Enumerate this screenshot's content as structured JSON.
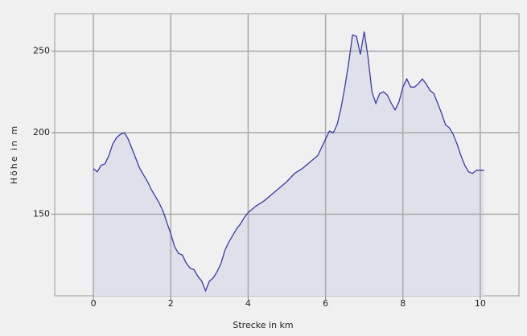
{
  "chart_data": {
    "type": "area",
    "xlabel": "Strecke in km",
    "ylabel": "Höhe in m",
    "x": [
      0,
      0.1,
      0.2,
      0.3,
      0.4,
      0.5,
      0.6,
      0.7,
      0.8,
      0.9,
      1.0,
      1.1,
      1.2,
      1.3,
      1.4,
      1.5,
      1.6,
      1.7,
      1.8,
      1.9,
      2.0,
      2.1,
      2.2,
      2.3,
      2.4,
      2.5,
      2.6,
      2.7,
      2.8,
      2.9,
      3.0,
      3.1,
      3.2,
      3.3,
      3.4,
      3.5,
      3.6,
      3.7,
      3.8,
      3.9,
      4.0,
      4.2,
      4.4,
      4.6,
      4.8,
      5.0,
      5.2,
      5.4,
      5.6,
      5.8,
      6.0,
      6.1,
      6.2,
      6.3,
      6.4,
      6.5,
      6.6,
      6.7,
      6.8,
      6.9,
      7.0,
      7.1,
      7.2,
      7.3,
      7.4,
      7.5,
      7.6,
      7.7,
      7.8,
      7.9,
      8.0,
      8.1,
      8.2,
      8.3,
      8.4,
      8.5,
      8.6,
      8.7,
      8.8,
      8.9,
      9.0,
      9.1,
      9.2,
      9.3,
      9.4,
      9.5,
      9.6,
      9.7,
      9.8,
      9.9,
      10.0,
      10.1
    ],
    "series": [
      {
        "name": "Höhe",
        "color": "#3a3aa8",
        "fill": "#dfe1ea",
        "values": [
          178,
          176,
          180,
          181,
          186,
          193,
          197,
          199,
          200,
          196,
          190,
          184,
          178,
          174,
          170,
          165,
          161,
          157,
          152,
          145,
          138,
          130,
          126,
          125,
          120,
          117,
          116,
          112,
          109,
          103,
          109,
          111,
          115,
          120,
          128,
          133,
          137,
          141,
          144,
          148,
          151,
          155,
          158,
          162,
          166,
          170,
          175,
          178,
          182,
          186,
          196,
          201,
          200,
          205,
          215,
          228,
          243,
          260,
          259,
          248,
          262,
          246,
          225,
          218,
          224,
          225,
          223,
          218,
          214,
          219,
          228,
          233,
          228,
          228,
          230,
          233,
          230,
          226,
          224,
          218,
          212,
          205,
          203,
          199,
          193,
          186,
          180,
          176,
          175,
          177,
          177,
          177
        ]
      }
    ],
    "xlim": [
      -1,
      11
    ],
    "xticks": [
      0,
      2,
      4,
      6,
      8,
      10
    ],
    "ylim": [
      100,
      273
    ],
    "yticks": [
      150,
      200,
      250
    ],
    "grid": true
  }
}
